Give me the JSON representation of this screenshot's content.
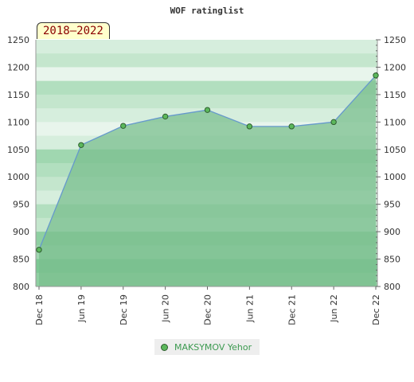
{
  "badge": "2018—2022",
  "legend": {
    "label": "MAKSYMOV Yehor"
  },
  "colors": {
    "line": "#6699cc",
    "fill": "#7bbf8f",
    "marker": "#5cb85c",
    "marker_stroke": "#2e5e2e",
    "bands": [
      "#e8f5ec",
      "#d6eedd",
      "#c4e6cd",
      "#b2dfbf",
      "#a0d7b0",
      "#8ecfa1",
      "#7cc893"
    ]
  },
  "chart_data": {
    "type": "area",
    "title": "WOF ratinglist",
    "xlabel": "",
    "ylabel": "",
    "x_ticks": [
      "Dec 18",
      "Jun 19",
      "Dec 19",
      "Jun 20",
      "Dec 20",
      "Jun 21",
      "Dec 21",
      "Jun 22",
      "Dec 22"
    ],
    "ylim": [
      800,
      1250
    ],
    "y_ticks": [
      800,
      850,
      900,
      950,
      1000,
      1050,
      1100,
      1150,
      1200,
      1250
    ],
    "y_ticks_right": true,
    "grid": false,
    "series": [
      {
        "name": "MAKSYMOV Yehor",
        "values": [
          867,
          1058,
          1093,
          1110,
          1122,
          1092,
          1092,
          1100,
          1185
        ]
      }
    ]
  }
}
